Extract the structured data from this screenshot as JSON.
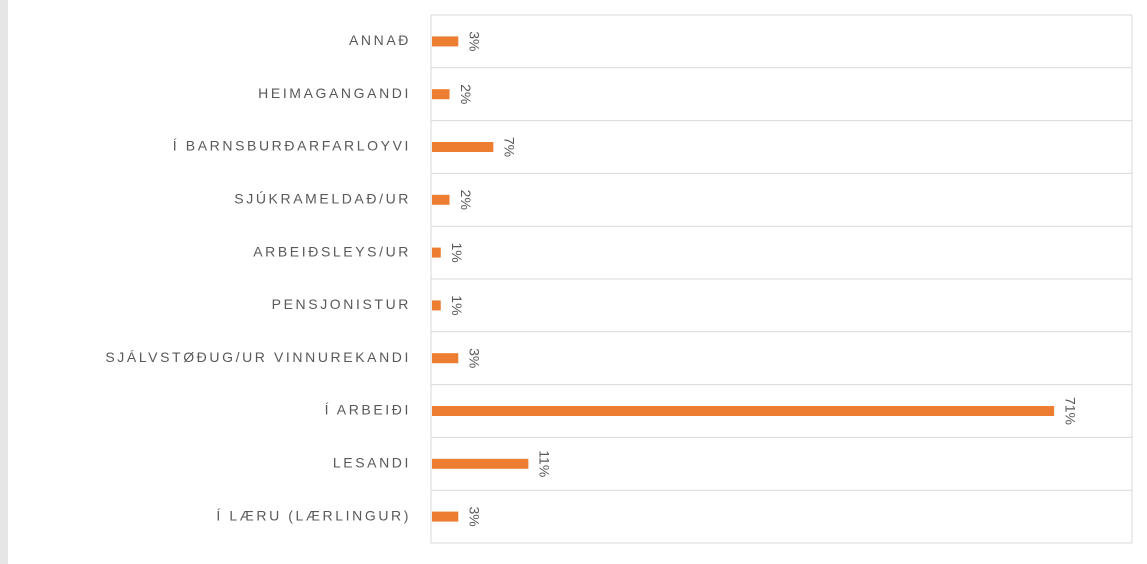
{
  "chart_data": {
    "type": "hbar",
    "categories": [
      "ANNAÐ",
      "HEIMAGANGANDI",
      "Í BARNSBURÐARFARLOYVI",
      "SJÚKRAMELDAÐ/UR",
      "ARBEIÐSLEYS/UR",
      "PENSJONISTUR",
      "SJÁLVSTØÐUG/UR VINNUREKANDI",
      "Í ARBEIÐI",
      "LESANDI",
      "Í LÆRU (LÆRLINGUR)"
    ],
    "values": [
      3,
      2,
      7,
      2,
      1,
      1,
      3,
      71,
      11,
      3
    ],
    "value_labels": [
      "3%",
      "2%",
      "7%",
      "2%",
      "1%",
      "1%",
      "3%",
      "71%",
      "11%",
      "3%"
    ],
    "color": "#ed7d31",
    "xlim": [
      0,
      80
    ]
  }
}
